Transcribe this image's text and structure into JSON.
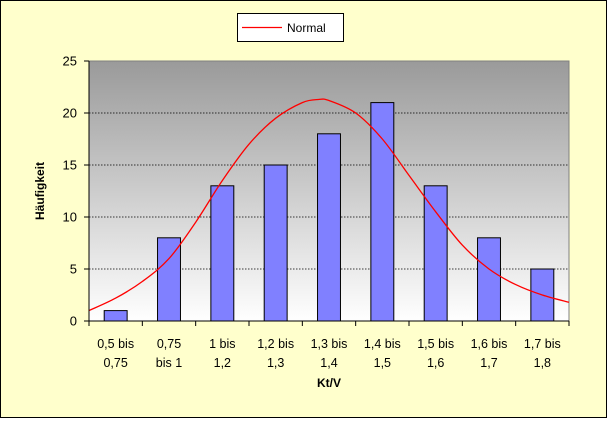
{
  "chart_data": {
    "type": "bar",
    "title": "",
    "xlabel": "Kt/V",
    "ylabel": "Häufigkeit",
    "ylim": [
      0,
      25
    ],
    "yticks": [
      0,
      5,
      10,
      15,
      20,
      25
    ],
    "grid": true,
    "legend_position": "top-center",
    "categories": [
      [
        "0,5 bis",
        "0,75"
      ],
      [
        "0,75",
        "bis 1"
      ],
      [
        "1 bis",
        "1,2"
      ],
      [
        "1,2 bis",
        "1,3"
      ],
      [
        "1,3 bis",
        "1,4"
      ],
      [
        "1,4 bis",
        "1,5"
      ],
      [
        "1,5 bis",
        "1,6"
      ],
      [
        "1,6 bis",
        "1,7"
      ],
      [
        "1,7 bis",
        "1,8"
      ]
    ],
    "series": [
      {
        "type": "bar",
        "values": [
          1,
          8,
          13,
          15,
          18,
          21,
          13,
          8,
          5
        ],
        "color": "#8080ff"
      },
      {
        "type": "line",
        "name": "Normal",
        "color": "#ff0000",
        "x": [
          -0.5,
          0,
          0.5,
          1,
          1.5,
          2,
          2.5,
          3,
          3.5,
          3.8,
          4,
          4.5,
          5,
          5.5,
          6,
          6.5,
          7,
          7.5,
          8,
          8.5
        ],
        "values": [
          1.0,
          2.2,
          3.8,
          6.0,
          9.5,
          13.5,
          17.0,
          19.5,
          21.0,
          21.3,
          21.2,
          20.0,
          17.5,
          14.0,
          10.5,
          7.3,
          5.0,
          3.5,
          2.5,
          1.8
        ]
      }
    ],
    "colors": {
      "page_bg": "#ffffcc",
      "plot_top": "#9a9a9a",
      "plot_bottom": "#ffffff",
      "bar_fill": "#8080ff",
      "bar_stroke": "#000000",
      "line": "#ff0000"
    }
  }
}
